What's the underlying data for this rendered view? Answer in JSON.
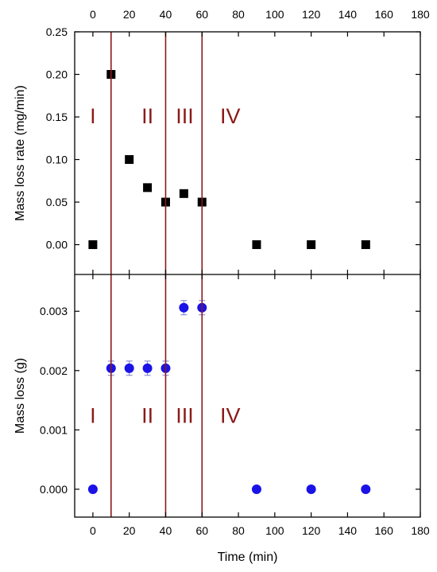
{
  "chart_data": [
    {
      "type": "scatter",
      "panel": "top",
      "xlabel": "",
      "ylabel": "Mass loss rate (mg/min)",
      "xlim": [
        -10,
        180
      ],
      "ylim": [
        -0.035,
        0.25
      ],
      "x_ticks": [
        0,
        20,
        40,
        60,
        80,
        100,
        120,
        140,
        160,
        180
      ],
      "y_ticks": [
        "0.00",
        "0.05",
        "0.10",
        "0.15",
        "0.20",
        "0.25"
      ],
      "series": [
        {
          "marker": "square",
          "color": "#000000",
          "points": [
            {
              "x": 0,
              "y": 0.0
            },
            {
              "x": 10,
              "y": 0.2
            },
            {
              "x": 20,
              "y": 0.1
            },
            {
              "x": 30,
              "y": 0.067
            },
            {
              "x": 40,
              "y": 0.05
            },
            {
              "x": 50,
              "y": 0.06
            },
            {
              "x": 60,
              "y": 0.05
            },
            {
              "x": 90,
              "y": 0.0
            },
            {
              "x": 120,
              "y": 0.0
            },
            {
              "x": 150,
              "y": 0.0
            }
          ]
        }
      ],
      "region_labels": [
        {
          "text": "I",
          "x": 0,
          "y": 0.152
        },
        {
          "text": "II",
          "x": 30,
          "y": 0.152
        },
        {
          "text": "III",
          "x": 50.5,
          "y": 0.152
        },
        {
          "text": "IV",
          "x": 75.5,
          "y": 0.152
        }
      ]
    },
    {
      "type": "scatter",
      "panel": "bottom",
      "xlabel": "Time (min)",
      "ylabel": "Mass loss (g)",
      "xlim": [
        -10,
        180
      ],
      "ylim": [
        -0.00047,
        0.00362
      ],
      "x_ticks": [
        0,
        20,
        40,
        60,
        80,
        100,
        120,
        140,
        160,
        180
      ],
      "y_ticks": [
        "0.000",
        "0.001",
        "0.002",
        "0.003"
      ],
      "series": [
        {
          "marker": "circle",
          "color": "#1a12e6",
          "points": [
            {
              "x": 0,
              "y": 0.0,
              "err": 0.0
            },
            {
              "x": 10,
              "y": 0.00204,
              "err": 0.00012
            },
            {
              "x": 20,
              "y": 0.00204,
              "err": 0.00012
            },
            {
              "x": 30,
              "y": 0.00204,
              "err": 0.00012
            },
            {
              "x": 40,
              "y": 0.00204,
              "err": 0.00012
            },
            {
              "x": 50,
              "y": 0.00306,
              "err": 0.00012
            },
            {
              "x": 60,
              "y": 0.00306,
              "err": 0.00012
            },
            {
              "x": 90,
              "y": 0.0,
              "err": 0.0
            },
            {
              "x": 120,
              "y": 0.0,
              "err": 0.0
            },
            {
              "x": 150,
              "y": 0.0,
              "err": 0.0
            }
          ]
        }
      ],
      "region_labels": [
        {
          "text": "I",
          "x": 0,
          "y": 0.00125
        },
        {
          "text": "II",
          "x": 30,
          "y": 0.00125
        },
        {
          "text": "III",
          "x": 50.5,
          "y": 0.00125
        },
        {
          "text": "IV",
          "x": 75.5,
          "y": 0.00125
        }
      ]
    }
  ],
  "vertical_lines": {
    "x": [
      10,
      40,
      60
    ],
    "color": "#8B1A1A"
  }
}
